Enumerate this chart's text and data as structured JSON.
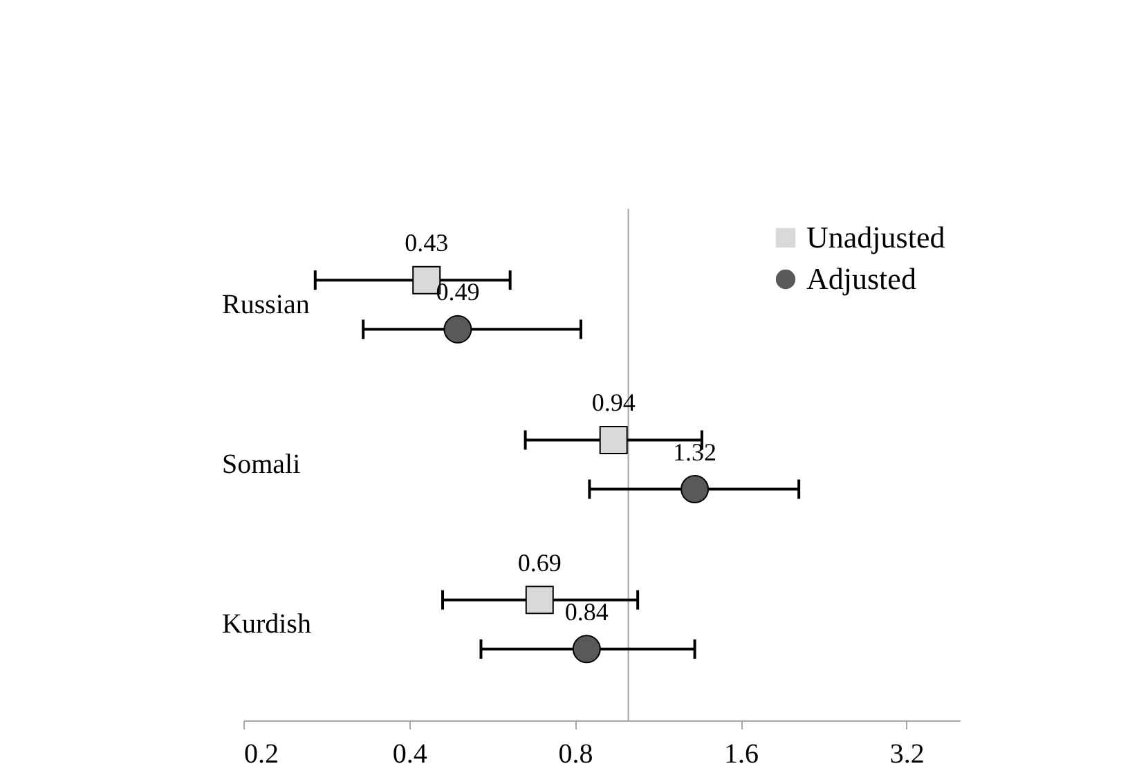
{
  "chart_data": {
    "type": "scatter",
    "categories": [
      "Russian",
      "Somali",
      "Kurdish"
    ],
    "orientation": "horizontal",
    "series": [
      {
        "name": "Unadjusted",
        "color": "#d9d9d9",
        "marker": "square",
        "values": [
          0.43,
          0.94,
          0.69
        ],
        "errors": [
          [
            0.27,
            0.61
          ],
          [
            0.65,
            1.36
          ],
          [
            0.46,
            1.04
          ]
        ]
      },
      {
        "name": "Adjusted",
        "color": "#595959",
        "marker": "circle",
        "values": [
          0.49,
          1.32,
          0.84
        ],
        "errors": [
          [
            0.33,
            0.82
          ],
          [
            0.85,
            2.04
          ],
          [
            0.54,
            1.32
          ]
        ]
      }
    ],
    "log": "x",
    "xlim": [
      0.2,
      4
    ],
    "xticks": [
      0.2,
      0.4,
      0.8,
      1.6,
      3.2
    ],
    "ref_lines": [
      {
        "axis": "x",
        "value": 1,
        "color": "#a6a6a6"
      }
    ],
    "data_labels": true,
    "grid": false,
    "legend": "top right"
  }
}
